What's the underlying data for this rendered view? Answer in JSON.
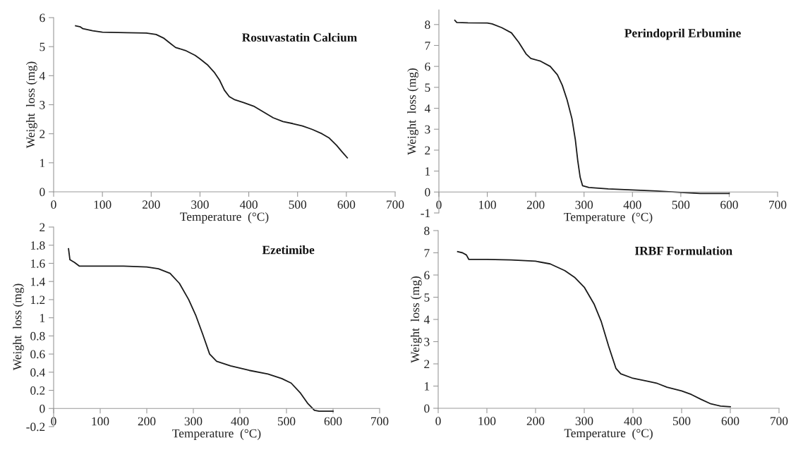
{
  "chart_data": [
    {
      "type": "line",
      "title": "Rosuvastatin Calcium",
      "xlabel": "Temperature  (°C)",
      "ylabel": "Weight  loss (mg)",
      "xlim": [
        0,
        700
      ],
      "ylim": [
        0,
        6
      ],
      "xticks": [
        0,
        100,
        200,
        300,
        400,
        500,
        600,
        700
      ],
      "yticks": [
        0,
        1,
        2,
        3,
        4,
        5,
        6
      ],
      "grid": false,
      "legend": false,
      "x": [
        45,
        55,
        60,
        80,
        100,
        150,
        190,
        210,
        225,
        240,
        250,
        270,
        290,
        300,
        315,
        330,
        340,
        350,
        360,
        370,
        390,
        410,
        430,
        450,
        470,
        490,
        510,
        530,
        550,
        565,
        580,
        590,
        602
      ],
      "series": [
        {
          "color": "#1a1a1a",
          "values": [
            5.72,
            5.68,
            5.62,
            5.55,
            5.5,
            5.48,
            5.47,
            5.42,
            5.3,
            5.1,
            4.97,
            4.87,
            4.7,
            4.58,
            4.38,
            4.1,
            3.85,
            3.5,
            3.28,
            3.18,
            3.07,
            2.95,
            2.75,
            2.55,
            2.42,
            2.35,
            2.27,
            2.15,
            2.0,
            1.85,
            1.6,
            1.4,
            1.17
          ]
        }
      ]
    },
    {
      "type": "line",
      "title": "Perindopril Erbumine",
      "xlabel": "Temperature  (°C)",
      "ylabel": "Weight  loss (mg)",
      "xlim": [
        0,
        700
      ],
      "ylim": [
        -1,
        8.7
      ],
      "xticks": [
        0,
        100,
        200,
        300,
        400,
        500,
        600,
        700
      ],
      "yticks": [
        -1,
        0,
        1,
        2,
        3,
        4,
        5,
        6,
        7,
        8
      ],
      "grid": false,
      "legend": false,
      "x": [
        33,
        37,
        60,
        100,
        110,
        130,
        150,
        165,
        180,
        190,
        210,
        230,
        245,
        255,
        265,
        275,
        282,
        287,
        292,
        297,
        310,
        350,
        400,
        450,
        500,
        540,
        600
      ],
      "series": [
        {
          "color": "#1a1a1a",
          "values": [
            8.2,
            8.1,
            8.08,
            8.07,
            8.03,
            7.85,
            7.6,
            7.15,
            6.6,
            6.38,
            6.25,
            6.0,
            5.6,
            5.1,
            4.4,
            3.5,
            2.5,
            1.5,
            0.7,
            0.3,
            0.22,
            0.15,
            0.1,
            0.05,
            -0.02,
            -0.07,
            -0.07
          ]
        }
      ]
    },
    {
      "type": "line",
      "title": "Ezetimibe",
      "xlabel": "Temperature  (°C)",
      "ylabel": "Weight  loss (mg)",
      "xlim": [
        0,
        700
      ],
      "ylim": [
        -0.2,
        2
      ],
      "xticks": [
        0,
        100,
        200,
        300,
        400,
        500,
        600,
        700
      ],
      "yticks": [
        -0.2,
        0,
        0.2,
        0.4,
        0.6,
        0.8,
        1,
        1.2,
        1.4,
        1.6,
        1.8,
        2
      ],
      "grid": false,
      "legend": false,
      "x": [
        32,
        35,
        45,
        55,
        100,
        150,
        200,
        225,
        250,
        270,
        290,
        305,
        320,
        335,
        350,
        380,
        420,
        460,
        490,
        510,
        530,
        545,
        560,
        570,
        600
      ],
      "series": [
        {
          "color": "#1a1a1a",
          "values": [
            1.76,
            1.64,
            1.61,
            1.57,
            1.57,
            1.57,
            1.56,
            1.54,
            1.49,
            1.38,
            1.2,
            1.03,
            0.82,
            0.6,
            0.52,
            0.47,
            0.42,
            0.38,
            0.33,
            0.28,
            0.17,
            0.06,
            -0.02,
            -0.03,
            -0.03
          ]
        }
      ]
    },
    {
      "type": "line",
      "title": "IRBF Formulation",
      "xlabel": "Temperature  (°C)",
      "ylabel": "Weight  loss (mg)",
      "xlim": [
        0,
        700
      ],
      "ylim": [
        0,
        8
      ],
      "xticks": [
        0,
        100,
        200,
        300,
        400,
        500,
        600,
        700
      ],
      "yticks": [
        0,
        1,
        2,
        3,
        4,
        5,
        6,
        7,
        8
      ],
      "grid": false,
      "legend": false,
      "x": [
        40,
        50,
        58,
        63,
        100,
        150,
        200,
        230,
        260,
        280,
        300,
        320,
        335,
        350,
        365,
        375,
        400,
        430,
        450,
        470,
        500,
        520,
        540,
        560,
        580,
        600
      ],
      "series": [
        {
          "color": "#1a1a1a",
          "values": [
            7.05,
            7.0,
            6.9,
            6.7,
            6.7,
            6.68,
            6.62,
            6.5,
            6.2,
            5.9,
            5.45,
            4.7,
            3.9,
            2.8,
            1.8,
            1.55,
            1.35,
            1.22,
            1.12,
            0.95,
            0.78,
            0.62,
            0.4,
            0.2,
            0.1,
            0.07
          ]
        }
      ]
    }
  ]
}
